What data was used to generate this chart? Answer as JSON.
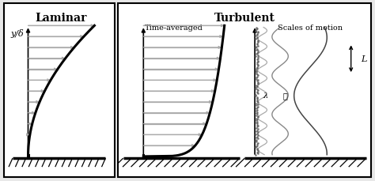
{
  "fig_width": 4.74,
  "fig_height": 2.3,
  "dpi": 100,
  "bg_color": "#e8e8e8",
  "panel_bg": "#ffffff",
  "title_laminar": "Laminar",
  "title_turbulent": "Turbulent",
  "subtitle_time_avg": "Time-averaged",
  "subtitle_scales": "Scales of motion",
  "ylabel_laminar": "y/δ",
  "label_lambda": "λ",
  "label_ell": "ℓ",
  "label_L": "L",
  "n_arrows": 13,
  "laminar_profile_power": 2.0,
  "turbulent_profile_power": 0.18,
  "arrow_color_lam": "#aaaaaa",
  "arrow_color_turb": "#aaaaaa",
  "profile_color": "#000000",
  "floor_color": "#000000"
}
